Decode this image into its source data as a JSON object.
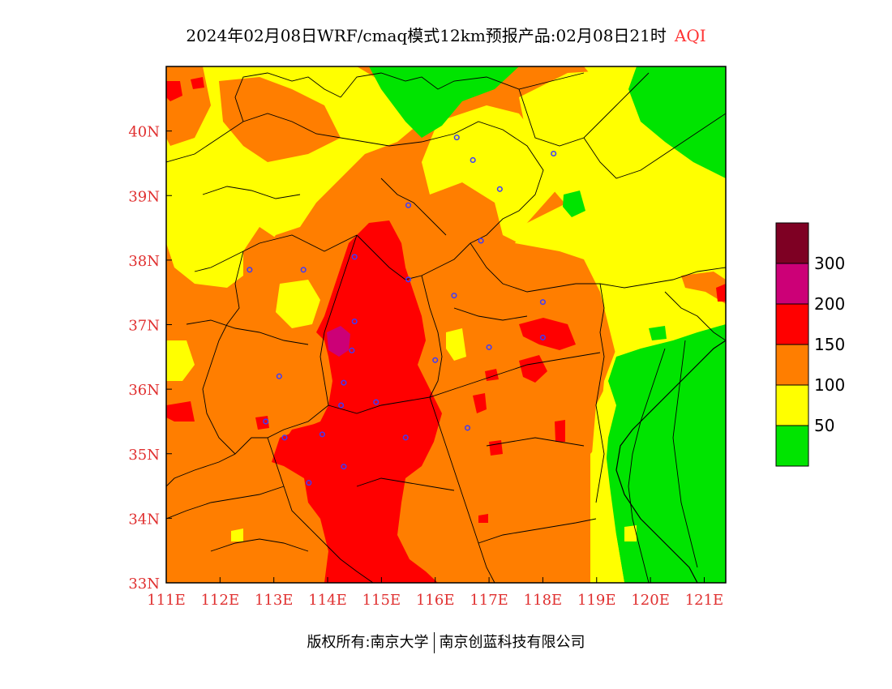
{
  "title": {
    "text": "2024年02月08日WRF/cmaq模式12km预报产品:02月08日21时",
    "product": "AQI"
  },
  "footer": {
    "left": "版权所有:南京大学",
    "right": "南京创蓝科技有限公司"
  },
  "map": {
    "lon_range": [
      111,
      121.4
    ],
    "lat_range": [
      33,
      41
    ],
    "x_ticks": [
      "111E",
      "112E",
      "113E",
      "114E",
      "115E",
      "116E",
      "117E",
      "118E",
      "119E",
      "120E",
      "121E"
    ],
    "y_ticks": [
      "33N",
      "34N",
      "35N",
      "36N",
      "37N",
      "38N",
      "39N",
      "40N"
    ],
    "tick_color": "#e03030",
    "stations": [
      [
        116.4,
        39.9
      ],
      [
        116.7,
        39.55
      ],
      [
        117.2,
        39.1
      ],
      [
        118.2,
        39.65
      ],
      [
        114.5,
        38.05
      ],
      [
        115.5,
        38.85
      ],
      [
        116.85,
        38.3
      ],
      [
        112.55,
        37.85
      ],
      [
        113.55,
        37.85
      ],
      [
        115.5,
        37.7
      ],
      [
        116.35,
        37.45
      ],
      [
        118.0,
        37.35
      ],
      [
        114.5,
        37.05
      ],
      [
        114.45,
        36.6
      ],
      [
        116.0,
        36.45
      ],
      [
        117.0,
        36.65
      ],
      [
        118.0,
        36.8
      ],
      [
        113.1,
        36.2
      ],
      [
        114.3,
        36.1
      ],
      [
        114.25,
        35.75
      ],
      [
        114.9,
        35.8
      ],
      [
        112.85,
        35.5
      ],
      [
        113.2,
        35.25
      ],
      [
        113.9,
        35.3
      ],
      [
        115.45,
        35.25
      ],
      [
        116.6,
        35.4
      ],
      [
        114.3,
        34.8
      ],
      [
        113.65,
        34.55
      ]
    ]
  },
  "legend": {
    "labels": [
      "300",
      "200",
      "150",
      "100",
      "50"
    ],
    "colors": [
      "#7e0023",
      "#cc0077",
      "#ff0000",
      "#ff7e00",
      "#ffff00",
      "#00e400"
    ],
    "green": "#00e400",
    "yellow": "#ffff00",
    "orange": "#ff7e00",
    "red": "#ff0000",
    "purple": "#cc0077",
    "maroon": "#7e0023"
  }
}
